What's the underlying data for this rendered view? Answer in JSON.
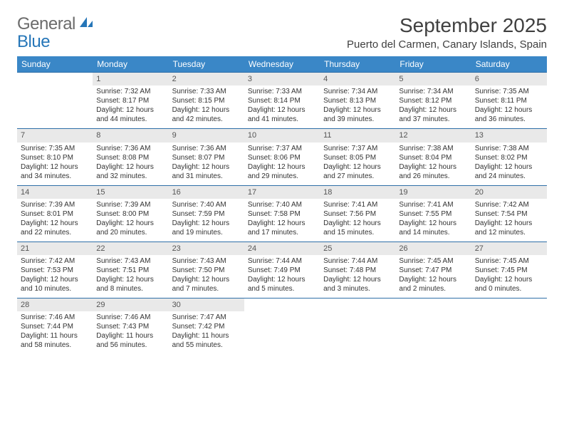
{
  "logo": {
    "text1": "General",
    "text2": "Blue"
  },
  "title": "September 2025",
  "location": "Puerto del Carmen, Canary Islands, Spain",
  "weekdays": [
    "Sunday",
    "Monday",
    "Tuesday",
    "Wednesday",
    "Thursday",
    "Friday",
    "Saturday"
  ],
  "colors": {
    "header_bg": "#3a87c7",
    "header_text": "#ffffff",
    "daynum_bg": "#e9e9e9",
    "rule": "#2f6fa8",
    "text": "#333333",
    "title_text": "#404040",
    "logo_gray": "#6b6b6b",
    "logo_blue": "#2676b8",
    "page_bg": "#ffffff"
  },
  "typography": {
    "title_fontsize": 28,
    "location_fontsize": 15,
    "weekday_fontsize": 12,
    "daynum_fontsize": 11,
    "body_fontsize": 10,
    "logo_fontsize": 24
  },
  "grid": {
    "columns": 7,
    "rows": 5,
    "first_weekday_index": 1
  },
  "days": [
    {
      "n": "1",
      "sunrise": "7:32 AM",
      "sunset": "8:17 PM",
      "daylight": "12 hours and 44 minutes."
    },
    {
      "n": "2",
      "sunrise": "7:33 AM",
      "sunset": "8:15 PM",
      "daylight": "12 hours and 42 minutes."
    },
    {
      "n": "3",
      "sunrise": "7:33 AM",
      "sunset": "8:14 PM",
      "daylight": "12 hours and 41 minutes."
    },
    {
      "n": "4",
      "sunrise": "7:34 AM",
      "sunset": "8:13 PM",
      "daylight": "12 hours and 39 minutes."
    },
    {
      "n": "5",
      "sunrise": "7:34 AM",
      "sunset": "8:12 PM",
      "daylight": "12 hours and 37 minutes."
    },
    {
      "n": "6",
      "sunrise": "7:35 AM",
      "sunset": "8:11 PM",
      "daylight": "12 hours and 36 minutes."
    },
    {
      "n": "7",
      "sunrise": "7:35 AM",
      "sunset": "8:10 PM",
      "daylight": "12 hours and 34 minutes."
    },
    {
      "n": "8",
      "sunrise": "7:36 AM",
      "sunset": "8:08 PM",
      "daylight": "12 hours and 32 minutes."
    },
    {
      "n": "9",
      "sunrise": "7:36 AM",
      "sunset": "8:07 PM",
      "daylight": "12 hours and 31 minutes."
    },
    {
      "n": "10",
      "sunrise": "7:37 AM",
      "sunset": "8:06 PM",
      "daylight": "12 hours and 29 minutes."
    },
    {
      "n": "11",
      "sunrise": "7:37 AM",
      "sunset": "8:05 PM",
      "daylight": "12 hours and 27 minutes."
    },
    {
      "n": "12",
      "sunrise": "7:38 AM",
      "sunset": "8:04 PM",
      "daylight": "12 hours and 26 minutes."
    },
    {
      "n": "13",
      "sunrise": "7:38 AM",
      "sunset": "8:02 PM",
      "daylight": "12 hours and 24 minutes."
    },
    {
      "n": "14",
      "sunrise": "7:39 AM",
      "sunset": "8:01 PM",
      "daylight": "12 hours and 22 minutes."
    },
    {
      "n": "15",
      "sunrise": "7:39 AM",
      "sunset": "8:00 PM",
      "daylight": "12 hours and 20 minutes."
    },
    {
      "n": "16",
      "sunrise": "7:40 AM",
      "sunset": "7:59 PM",
      "daylight": "12 hours and 19 minutes."
    },
    {
      "n": "17",
      "sunrise": "7:40 AM",
      "sunset": "7:58 PM",
      "daylight": "12 hours and 17 minutes."
    },
    {
      "n": "18",
      "sunrise": "7:41 AM",
      "sunset": "7:56 PM",
      "daylight": "12 hours and 15 minutes."
    },
    {
      "n": "19",
      "sunrise": "7:41 AM",
      "sunset": "7:55 PM",
      "daylight": "12 hours and 14 minutes."
    },
    {
      "n": "20",
      "sunrise": "7:42 AM",
      "sunset": "7:54 PM",
      "daylight": "12 hours and 12 minutes."
    },
    {
      "n": "21",
      "sunrise": "7:42 AM",
      "sunset": "7:53 PM",
      "daylight": "12 hours and 10 minutes."
    },
    {
      "n": "22",
      "sunrise": "7:43 AM",
      "sunset": "7:51 PM",
      "daylight": "12 hours and 8 minutes."
    },
    {
      "n": "23",
      "sunrise": "7:43 AM",
      "sunset": "7:50 PM",
      "daylight": "12 hours and 7 minutes."
    },
    {
      "n": "24",
      "sunrise": "7:44 AM",
      "sunset": "7:49 PM",
      "daylight": "12 hours and 5 minutes."
    },
    {
      "n": "25",
      "sunrise": "7:44 AM",
      "sunset": "7:48 PM",
      "daylight": "12 hours and 3 minutes."
    },
    {
      "n": "26",
      "sunrise": "7:45 AM",
      "sunset": "7:47 PM",
      "daylight": "12 hours and 2 minutes."
    },
    {
      "n": "27",
      "sunrise": "7:45 AM",
      "sunset": "7:45 PM",
      "daylight": "12 hours and 0 minutes."
    },
    {
      "n": "28",
      "sunrise": "7:46 AM",
      "sunset": "7:44 PM",
      "daylight": "11 hours and 58 minutes."
    },
    {
      "n": "29",
      "sunrise": "7:46 AM",
      "sunset": "7:43 PM",
      "daylight": "11 hours and 56 minutes."
    },
    {
      "n": "30",
      "sunrise": "7:47 AM",
      "sunset": "7:42 PM",
      "daylight": "11 hours and 55 minutes."
    }
  ],
  "labels": {
    "sunrise": "Sunrise:",
    "sunset": "Sunset:",
    "daylight": "Daylight:"
  }
}
